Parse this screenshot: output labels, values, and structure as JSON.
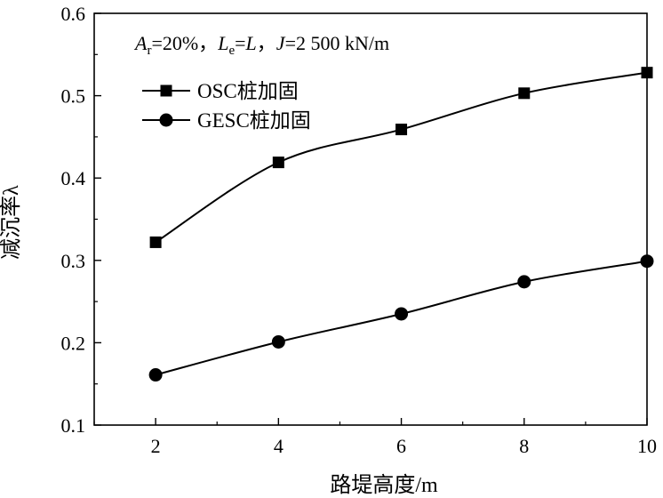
{
  "chart_data": {
    "type": "line",
    "title": "",
    "annotation": {
      "a_sym": "A",
      "a_sub": "r",
      "a_val": "=20%，",
      "l_sym": "L",
      "l_sub": "e",
      "l_val": "=",
      "l_rhs": "L",
      "comma": "，",
      "j_sym": "J",
      "j_val": "=2 500 kN/m"
    },
    "xlabel": "路堤高度/m",
    "ylabel": "减沉率λ",
    "x": [
      2,
      4,
      6,
      8,
      10
    ],
    "xlim": [
      1,
      10
    ],
    "ylim": [
      0.1,
      0.6
    ],
    "xticks": [
      2,
      4,
      6,
      8,
      10
    ],
    "xtick_labels": [
      "2",
      "4",
      "6",
      "8",
      "10"
    ],
    "yticks": [
      0.1,
      0.2,
      0.3,
      0.4,
      0.5,
      0.6
    ],
    "ytick_labels": [
      "0.1",
      "0.2",
      "0.3",
      "0.4",
      "0.5",
      "0.6"
    ],
    "legend_position": "top-left",
    "series": [
      {
        "name": "OSC桩加固",
        "marker": "square",
        "values": [
          0.322,
          0.419,
          0.459,
          0.503,
          0.528
        ]
      },
      {
        "name": "GESC桩加固",
        "marker": "circle",
        "values": [
          0.161,
          0.201,
          0.235,
          0.274,
          0.299
        ]
      }
    ]
  }
}
